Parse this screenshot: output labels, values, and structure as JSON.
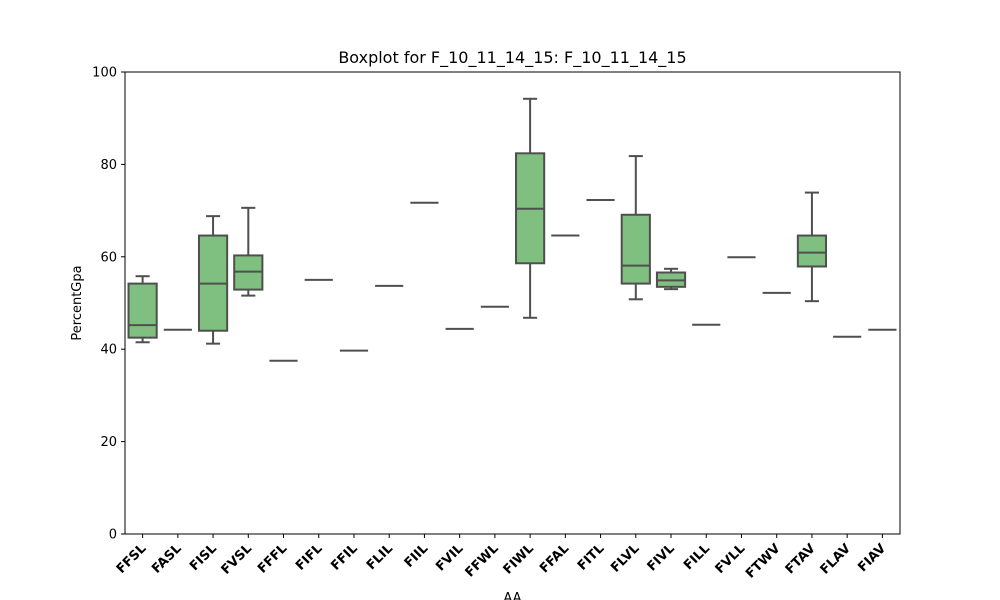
{
  "chart_data": {
    "type": "boxplot",
    "title": "Boxplot for F_10_11_14_15: F_10_11_14_15",
    "xlabel": "AA",
    "ylabel": "PercentGpa",
    "ylim": [
      0,
      100
    ],
    "yticks": [
      0,
      20,
      40,
      60,
      80,
      100
    ],
    "grid": false,
    "box_color": "#7fbf7f",
    "line_color": "#4f4f4f",
    "categories": [
      "FFSL",
      "FASL",
      "FISL",
      "FVSL",
      "FFFL",
      "FIFL",
      "FFIL",
      "FLIL",
      "FIIL",
      "FVIL",
      "FFWL",
      "FIWL",
      "FFAL",
      "FITL",
      "FLVL",
      "FIVL",
      "FILL",
      "FVLL",
      "FTWV",
      "FTAV",
      "FLAV",
      "FIAV"
    ],
    "boxes": [
      {
        "min": 41.5,
        "q1": 42.5,
        "median": 45.2,
        "q3": 54.2,
        "max": 55.8
      },
      {
        "min": 44.2,
        "q1": 44.2,
        "median": 44.2,
        "q3": 44.2,
        "max": 44.2
      },
      {
        "min": 41.2,
        "q1": 44.0,
        "median": 54.2,
        "q3": 64.6,
        "max": 68.8
      },
      {
        "min": 51.6,
        "q1": 52.9,
        "median": 56.8,
        "q3": 60.3,
        "max": 70.6
      },
      {
        "min": 37.5,
        "q1": 37.5,
        "median": 37.5,
        "q3": 37.5,
        "max": 37.5
      },
      {
        "min": 55.0,
        "q1": 55.0,
        "median": 55.0,
        "q3": 55.0,
        "max": 55.0
      },
      {
        "min": 39.7,
        "q1": 39.7,
        "median": 39.7,
        "q3": 39.7,
        "max": 39.7
      },
      {
        "min": 53.7,
        "q1": 53.7,
        "median": 53.7,
        "q3": 53.7,
        "max": 53.7
      },
      {
        "min": 71.7,
        "q1": 71.7,
        "median": 71.7,
        "q3": 71.7,
        "max": 71.7
      },
      {
        "min": 44.4,
        "q1": 44.4,
        "median": 44.4,
        "q3": 44.4,
        "max": 44.4
      },
      {
        "min": 49.2,
        "q1": 49.2,
        "median": 49.2,
        "q3": 49.2,
        "max": 49.2
      },
      {
        "min": 46.8,
        "q1": 58.6,
        "median": 70.4,
        "q3": 82.4,
        "max": 94.2
      },
      {
        "min": 64.6,
        "q1": 64.6,
        "median": 64.6,
        "q3": 64.6,
        "max": 64.6
      },
      {
        "min": 72.3,
        "q1": 72.3,
        "median": 72.3,
        "q3": 72.3,
        "max": 72.3
      },
      {
        "min": 50.8,
        "q1": 54.2,
        "median": 58.1,
        "q3": 69.1,
        "max": 81.8
      },
      {
        "min": 53.0,
        "q1": 53.5,
        "median": 54.9,
        "q3": 56.6,
        "max": 57.4
      },
      {
        "min": 45.3,
        "q1": 45.3,
        "median": 45.3,
        "q3": 45.3,
        "max": 45.3
      },
      {
        "min": 59.9,
        "q1": 59.9,
        "median": 59.9,
        "q3": 59.9,
        "max": 59.9
      },
      {
        "min": 52.2,
        "q1": 52.2,
        "median": 52.2,
        "q3": 52.2,
        "max": 52.2
      },
      {
        "min": 50.4,
        "q1": 57.9,
        "median": 60.9,
        "q3": 64.6,
        "max": 73.9
      },
      {
        "min": 42.7,
        "q1": 42.7,
        "median": 42.7,
        "q3": 42.7,
        "max": 42.7
      },
      {
        "min": 44.2,
        "q1": 44.2,
        "median": 44.2,
        "q3": 44.2,
        "max": 44.2
      }
    ]
  }
}
